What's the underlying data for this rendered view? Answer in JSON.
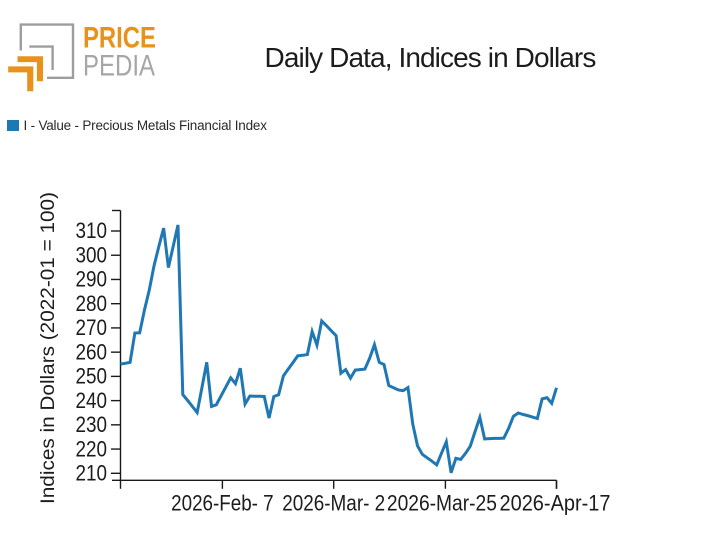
{
  "logo": {
    "brand_top": "PRICE",
    "brand_bottom": "PEDIA",
    "orange": "#E8921C",
    "gray": "#9D9D9D"
  },
  "header": {
    "title": "Daily Data, Indices in Dollars"
  },
  "legend": {
    "series_label": "I - Value - Precious Metals Financial Index",
    "swatch_color": "#1F77B4"
  },
  "chart_data": {
    "type": "line",
    "title": "Daily Data, Indices in Dollars",
    "xlabel": "",
    "ylabel": "Indices in Dollars (2022-01 = 100)",
    "line_color": "#1F77B4",
    "axis_color": "#1A1A1A",
    "grid": false,
    "legend_position": "top-left",
    "y_ticks": [
      210,
      220,
      230,
      240,
      250,
      260,
      270,
      280,
      290,
      300,
      310
    ],
    "ylim": [
      207.1,
      318.5
    ],
    "x_tick_labels": [
      "2026-Feb- 7",
      "2026-Mar- 2",
      "2026-Mar-25",
      "2026-Apr-17"
    ],
    "x_tick_day_index": [
      22,
      45,
      68,
      91
    ],
    "series": [
      {
        "name": "I - Value - Precious Metals Financial Index",
        "color": "#1F77B4",
        "dates": [
          "2026-01-16",
          "2026-01-17",
          "2026-01-18",
          "2026-01-19",
          "2026-01-20",
          "2026-01-21",
          "2026-01-22",
          "2026-01-23",
          "2026-01-24",
          "2026-01-25",
          "2026-01-26",
          "2026-01-27",
          "2026-01-28",
          "2026-01-29",
          "2026-01-30",
          "2026-01-31",
          "2026-02-01",
          "2026-02-02",
          "2026-02-03",
          "2026-02-04",
          "2026-02-05",
          "2026-02-06",
          "2026-02-07",
          "2026-02-08",
          "2026-02-09",
          "2026-02-10",
          "2026-02-11",
          "2026-02-12",
          "2026-02-13",
          "2026-02-14",
          "2026-02-15",
          "2026-02-16",
          "2026-02-17",
          "2026-02-18",
          "2026-02-19",
          "2026-02-20",
          "2026-02-21",
          "2026-02-22",
          "2026-02-23",
          "2026-02-24",
          "2026-02-25",
          "2026-02-26",
          "2026-02-27",
          "2026-02-28",
          "2026-03-01",
          "2026-03-02",
          "2026-03-03",
          "2026-03-04",
          "2026-03-05",
          "2026-03-06",
          "2026-03-07",
          "2026-03-08",
          "2026-03-09",
          "2026-03-10",
          "2026-03-11",
          "2026-03-12",
          "2026-03-13",
          "2026-03-14",
          "2026-03-15",
          "2026-03-16",
          "2026-03-17",
          "2026-03-18",
          "2026-03-19",
          "2026-03-20",
          "2026-03-21",
          "2026-03-22",
          "2026-03-23",
          "2026-03-24",
          "2026-03-25",
          "2026-03-26",
          "2026-03-27",
          "2026-03-28",
          "2026-03-29",
          "2026-03-30",
          "2026-03-31",
          "2026-04-01",
          "2026-04-02",
          "2026-04-03",
          "2026-04-04",
          "2026-04-05",
          "2026-04-06",
          "2026-04-07",
          "2026-04-08",
          "2026-04-09",
          "2026-04-10",
          "2026-04-11",
          "2026-04-12",
          "2026-04-13",
          "2026-04-14",
          "2026-04-15",
          "2026-04-16",
          "2026-04-17"
        ],
        "values": [
          255.1,
          255.4,
          255.8,
          267.9,
          268.0,
          277.4,
          285.6,
          295.7,
          303.6,
          311.2,
          294.9,
          303.7,
          312.5,
          242.5,
          240.1,
          237.6,
          235.1,
          245.4,
          255.8,
          237.6,
          238.3,
          242.0,
          245.7,
          249.4,
          247.0,
          253.4,
          238.6,
          241.9,
          241.8,
          241.8,
          241.7,
          232.8,
          241.7,
          242.4,
          250.2,
          253.0,
          255.7,
          258.5,
          258.7,
          259.0,
          268.5,
          262.9,
          272.9,
          270.9,
          268.8,
          266.8,
          251.3,
          252.8,
          249.3,
          252.6,
          252.8,
          253.0,
          257.5,
          263.1,
          255.8,
          254.9,
          246.2,
          245.3,
          244.4,
          244.1,
          245.4,
          230.3,
          221.3,
          217.8,
          216.4,
          215.0,
          213.5,
          218.3,
          223.0,
          210.2,
          216.2,
          215.7,
          218.2,
          221.2,
          227.2,
          233.1,
          224.2,
          224.3,
          224.4,
          224.4,
          224.5,
          228.5,
          233.5,
          234.9,
          234.3,
          233.8,
          233.2,
          232.6,
          240.7,
          241.2,
          238.9,
          245.3
        ]
      }
    ]
  }
}
